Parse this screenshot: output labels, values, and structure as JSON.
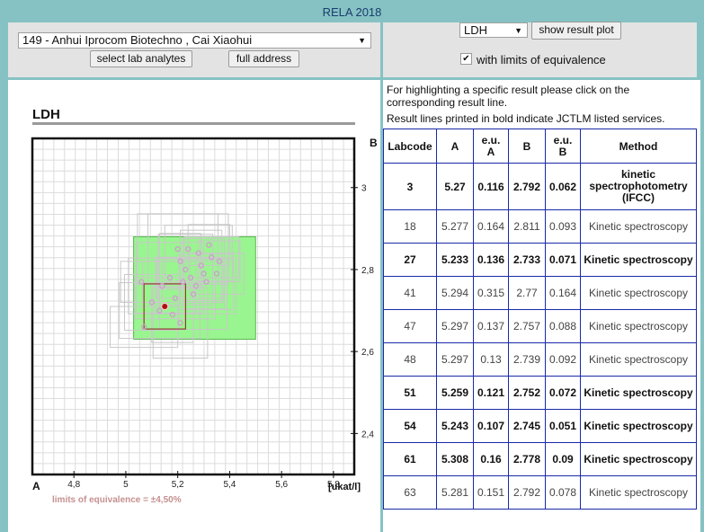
{
  "app": {
    "title": "RELA 2018"
  },
  "lab": {
    "selected": "149 - Anhui Iprocom Biotechno , Cai Xiaohui",
    "select_analytes_label": "select lab analytes",
    "full_address_label": "full address"
  },
  "analyte": {
    "selected": "LDH",
    "show_result_plot_label": "show result plot",
    "with_limits_checked": true,
    "with_limits_label": "with limits of equivalence"
  },
  "info": {
    "line1": "For highlighting a specific result please click on the",
    "line2": "corresponding result line.",
    "line3": "Result lines printed in bold indicate JCTLM listed services."
  },
  "plot": {
    "title": "LDH",
    "axis_a_label": "A",
    "axis_b_label": "B",
    "unit_label": "[ukat/l]",
    "limits_label": "limits of equivalence = ±4,50%"
  },
  "chart_data": {
    "type": "scatter",
    "x_ticks": [
      "4,8",
      "5",
      "5,2",
      "5,4",
      "5,6",
      "5,8"
    ],
    "y_ticks": [
      "3",
      "2,8",
      "2,6",
      "2,4"
    ],
    "xlim": [
      4.64,
      5.88
    ],
    "ylim": [
      2.3,
      3.12
    ],
    "equivalence_box": {
      "x": [
        5.03,
        5.5
      ],
      "y": [
        2.63,
        2.88
      ]
    },
    "own_result": {
      "x": 5.15,
      "y": 2.71,
      "half_x": 0.08,
      "half_y": 0.055
    },
    "points": [
      [
        5.06,
        2.77
      ],
      [
        5.1,
        2.72
      ],
      [
        5.17,
        2.78
      ],
      [
        5.19,
        2.73
      ],
      [
        5.21,
        2.82
      ],
      [
        5.23,
        2.8
      ],
      [
        5.25,
        2.78
      ],
      [
        5.27,
        2.76
      ],
      [
        5.3,
        2.79
      ],
      [
        5.33,
        2.83
      ],
      [
        5.28,
        2.84
      ],
      [
        5.24,
        2.85
      ],
      [
        5.36,
        2.82
      ],
      [
        5.31,
        2.77
      ],
      [
        5.26,
        2.74
      ],
      [
        5.22,
        2.77
      ],
      [
        5.18,
        2.69
      ],
      [
        5.21,
        2.67
      ],
      [
        5.07,
        2.66
      ],
      [
        5.13,
        2.7
      ],
      [
        5.29,
        2.81
      ],
      [
        5.35,
        2.79
      ],
      [
        5.14,
        2.76
      ],
      [
        5.2,
        2.85
      ],
      [
        5.32,
        2.86
      ]
    ]
  },
  "table": {
    "headers": [
      "Labcode",
      "A",
      "e.u. A",
      "B",
      "e.u. B",
      "Method"
    ],
    "rows": [
      {
        "labcode": "3",
        "a": "5.27",
        "eua": "0.116",
        "b": "2.792",
        "eub": "0.062",
        "method": "kinetic spectrophotometry (IFCC)",
        "bold": true
      },
      {
        "labcode": "18",
        "a": "5.277",
        "eua": "0.164",
        "b": "2.811",
        "eub": "0.093",
        "method": "Kinetic spectroscopy",
        "bold": false
      },
      {
        "labcode": "27",
        "a": "5.233",
        "eua": "0.136",
        "b": "2.733",
        "eub": "0.071",
        "method": "Kinetic spectroscopy",
        "bold": true
      },
      {
        "labcode": "41",
        "a": "5.294",
        "eua": "0.315",
        "b": "2.77",
        "eub": "0.164",
        "method": "Kinetic spectroscopy",
        "bold": false
      },
      {
        "labcode": "47",
        "a": "5.297",
        "eua": "0.137",
        "b": "2.757",
        "eub": "0.088",
        "method": "Kinetic spectroscopy",
        "bold": false
      },
      {
        "labcode": "48",
        "a": "5.297",
        "eua": "0.13",
        "b": "2.739",
        "eub": "0.092",
        "method": "Kinetic spectroscopy",
        "bold": false
      },
      {
        "labcode": "51",
        "a": "5.259",
        "eua": "0.121",
        "b": "2.752",
        "eub": "0.072",
        "method": "Kinetic spectroscopy",
        "bold": true
      },
      {
        "labcode": "54",
        "a": "5.243",
        "eua": "0.107",
        "b": "2.745",
        "eub": "0.051",
        "method": "Kinetic spectroscopy",
        "bold": true
      },
      {
        "labcode": "61",
        "a": "5.308",
        "eua": "0.16",
        "b": "2.778",
        "eub": "0.09",
        "method": "Kinetic spectroscopy",
        "bold": true
      },
      {
        "labcode": "63",
        "a": "5.281",
        "eua": "0.151",
        "b": "2.792",
        "eub": "0.078",
        "method": "Kinetic spectroscopy",
        "bold": false
      }
    ]
  }
}
